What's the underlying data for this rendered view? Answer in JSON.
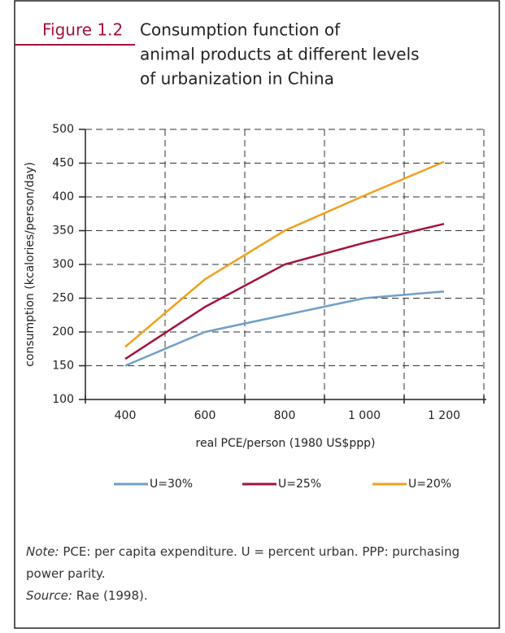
{
  "chart_data": {
    "type": "line",
    "figure_label": "Figure 1.2",
    "title": [
      "Consumption function of",
      "animal products at different levels",
      "of urbanization in China"
    ],
    "x_label": "real PCE/person (1980 US$ppp)",
    "y_label": "consumption (kcalories/person/day)",
    "categories": [
      "400",
      "600",
      "800",
      "1 000",
      "1 200"
    ],
    "series": [
      {
        "name": "U=30%",
        "color": "#6f9fc8",
        "values": [
          150,
          200,
          225,
          250,
          260
        ]
      },
      {
        "name": "U=25%",
        "color": "#a3123a",
        "values": [
          160,
          237,
          300,
          332,
          360
        ]
      },
      {
        "name": "U=20%",
        "color": "#f0a01c",
        "values": [
          178,
          278,
          350,
          402,
          452
        ]
      }
    ],
    "ylim": [
      100,
      500
    ],
    "yticks": [
      100,
      150,
      200,
      250,
      300,
      350,
      400,
      450,
      500
    ],
    "grid": true,
    "legend": "bottom"
  },
  "note": {
    "label": "Note:",
    "text": "PCE: per capita expenditure. U = percent urban. PPP: purchasing power parity."
  },
  "source": {
    "label": "Source:",
    "text": "Rae (1998)."
  }
}
